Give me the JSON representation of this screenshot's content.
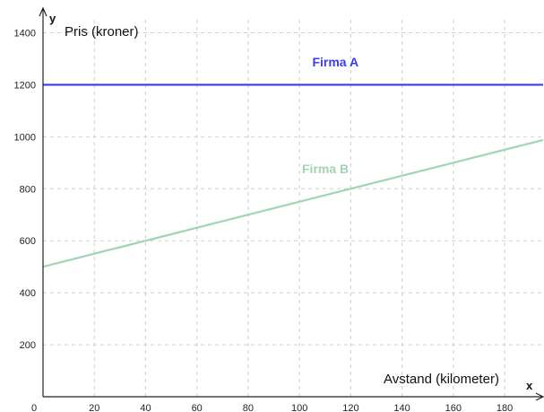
{
  "chart_data": {
    "type": "line",
    "title": "",
    "x_axis_letter": "x",
    "y_axis_letter": "y",
    "xlabel": "Avstand (kilometer)",
    "ylabel": "Pris (kroner)",
    "xlim": [
      0,
      195
    ],
    "ylim": [
      0,
      1450
    ],
    "x_ticks": [
      0,
      20,
      40,
      60,
      80,
      100,
      120,
      140,
      160,
      180
    ],
    "y_ticks": [
      200,
      400,
      600,
      800,
      1000,
      1200,
      1400
    ],
    "grid": true,
    "series": [
      {
        "name": "Firma A",
        "color": "#3b3bf0",
        "x": [
          0,
          195
        ],
        "y": [
          1200,
          1200
        ],
        "label_at": [
          105,
          1270
        ]
      },
      {
        "name": "Firma B",
        "color": "#9fd4b4",
        "x": [
          0,
          195
        ],
        "y": [
          500,
          987.5
        ],
        "label_at": [
          101,
          860
        ]
      }
    ]
  }
}
